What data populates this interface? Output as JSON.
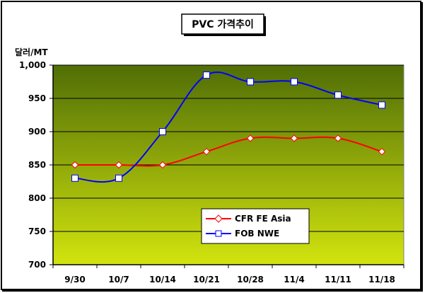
{
  "chart_data": {
    "type": "line",
    "title": "PVC 가격추이",
    "ylabel": "달러/MT",
    "xlabel": "",
    "categories": [
      "9/30",
      "10/7",
      "10/14",
      "10/21",
      "10/28",
      "11/4",
      "11/11",
      "11/18"
    ],
    "ylim": [
      700,
      1000
    ],
    "yticks": [
      700,
      750,
      800,
      850,
      900,
      950,
      1000
    ],
    "ytick_labels": [
      "700",
      "750",
      "800",
      "850",
      "900",
      "950",
      "1,000"
    ],
    "grid": true,
    "legend_position": "bottom-center",
    "series": [
      {
        "name": "CFR FE Asia",
        "values": [
          850,
          850,
          850,
          870,
          890,
          890,
          890,
          870
        ],
        "color": "#ff0000",
        "marker": "diamond"
      },
      {
        "name": "FOB NWE",
        "values": [
          830,
          830,
          900,
          985,
          975,
          975,
          955,
          940
        ],
        "color": "#0000ff",
        "marker": "square"
      }
    ],
    "colors": {
      "plot_top": "#506e06",
      "plot_bottom": "#d2e40e",
      "grid": "#000000"
    }
  }
}
